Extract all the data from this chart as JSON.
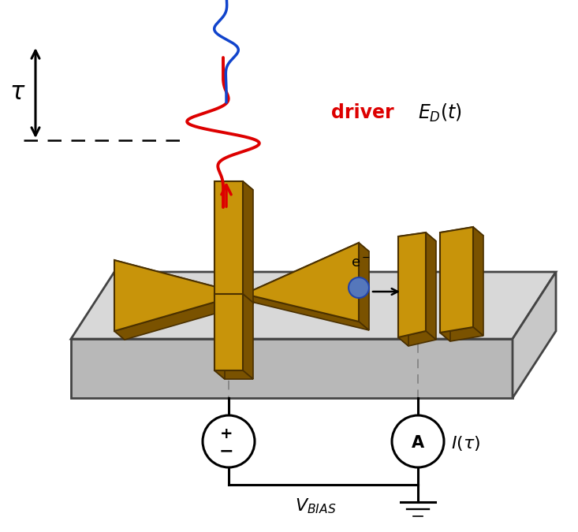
{
  "bg_color": "#ffffff",
  "gold_face": "#c8940a",
  "gold_dark": "#7a5200",
  "gold_right": "#a06800",
  "gold_edge": "#4a3000",
  "chip_top": "#d8d8d8",
  "chip_front": "#b8b8b8",
  "chip_right": "#c8c8c8",
  "chip_edge": "#444444",
  "red_color": "#dd0000",
  "blue_color": "#1144cc",
  "electron_color": "#5577bb",
  "figsize": [
    7.33,
    6.75
  ],
  "dpi": 100
}
